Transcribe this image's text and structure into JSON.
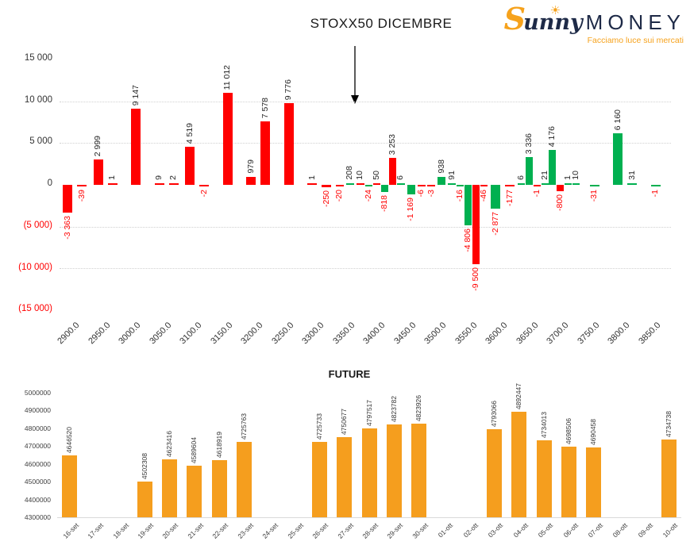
{
  "logo": {
    "brand_script": "S",
    "brand_script_rest": "unny",
    "brand_rest": "MONEY",
    "tagline": "Facciamo luce sui mercati",
    "orange": "#f6a21c",
    "navy": "#1e2a47"
  },
  "chart_data": [
    {
      "type": "bar",
      "title": "STOXX50 DICEMBRE",
      "ylim": [
        -15000,
        15000
      ],
      "ytick_step": 5000,
      "y_tick_labels": [
        "15 000",
        "10 000",
        "5 000",
        "0",
        "(5 000)",
        "(10 000)",
        "(15 000)"
      ],
      "grid": "dotted horizontal at ±5 000 and ±10 000",
      "colors": {
        "red_series": "#ff0000",
        "green_series": "#00b050",
        "negative_label": "#ff0000",
        "positive_label": "#262626"
      },
      "annotation": "downward arrow from title pointing between 3350 and 3400",
      "categories": [
        "2900.0",
        "2950.0",
        "3000.0",
        "3050.0",
        "3100.0",
        "3150.0",
        "3200.0",
        "3250.0",
        "3300.0",
        "3350.0",
        "3400.0",
        "3450.0",
        "3500.0",
        "3550.0",
        "3600.0",
        "3650.0",
        "3700.0",
        "3750.0",
        "3800.0",
        "3850.0"
      ],
      "bars_by_category": [
        [
          {
            "v": -3363,
            "t": "-3 363",
            "c": "R"
          },
          {
            "v": -39,
            "t": "-39",
            "c": "R"
          }
        ],
        [
          {
            "v": 2999,
            "t": "2 999",
            "c": "R"
          },
          {
            "v": 1,
            "t": "1",
            "c": "R"
          }
        ],
        [
          {
            "v": 9147,
            "t": "9 147",
            "c": "R"
          }
        ],
        [
          {
            "v": 9,
            "t": "9",
            "c": "R"
          },
          {
            "v": 2,
            "t": "2",
            "c": "R"
          }
        ],
        [
          {
            "v": 4519,
            "t": "4 519",
            "c": "R"
          },
          {
            "v": -2,
            "t": "-2",
            "c": "R"
          }
        ],
        [
          {
            "v": 11012,
            "t": "11 012",
            "c": "R"
          }
        ],
        [
          {
            "v": 979,
            "t": "979",
            "c": "R"
          },
          {
            "v": 7578,
            "t": "7 578",
            "c": "R"
          }
        ],
        [
          {
            "v": 9776,
            "t": "9 776",
            "c": "R"
          }
        ],
        [
          {
            "v": 1,
            "t": "1",
            "c": "R"
          },
          {
            "v": -250,
            "t": "-250",
            "c": "R"
          }
        ],
        [
          {
            "v": -20,
            "t": "-20",
            "c": "R"
          },
          {
            "v": 208,
            "t": "208",
            "c": "G"
          },
          {
            "v": 10,
            "t": "10",
            "c": "R"
          }
        ],
        [
          {
            "v": -24,
            "t": "-24",
            "c": "G"
          },
          {
            "v": 50,
            "t": "50",
            "c": "R"
          },
          {
            "v": -818,
            "t": "-818",
            "c": "G"
          },
          {
            "v": 3253,
            "t": "3 253",
            "c": "R"
          }
        ],
        [
          {
            "v": 6,
            "t": "6",
            "c": "G"
          },
          {
            "v": -1169,
            "t": "-1 169",
            "c": "G"
          },
          {
            "v": -6,
            "t": "-6",
            "c": "R"
          }
        ],
        [
          {
            "v": -3,
            "t": "-3",
            "c": "R"
          },
          {
            "v": 938,
            "t": "938",
            "c": "G"
          },
          {
            "v": 91,
            "t": "91",
            "c": "G"
          }
        ],
        [
          {
            "v": -16,
            "t": "-16",
            "c": "G"
          },
          {
            "v": -4806,
            "t": "-4 806",
            "c": "G"
          },
          {
            "v": -9500,
            "t": "-9 500",
            "c": "R"
          },
          {
            "v": -46,
            "t": "-46",
            "c": "R"
          }
        ],
        [
          {
            "v": -2877,
            "t": "-2 877",
            "c": "G"
          },
          {
            "v": -177,
            "t": "-177",
            "c": "R"
          }
        ],
        [
          {
            "v": 6,
            "t": "6",
            "c": "G"
          },
          {
            "v": 3336,
            "t": "3 336",
            "c": "G"
          },
          {
            "v": -1,
            "t": "-1",
            "c": "R"
          },
          {
            "v": 21,
            "t": "21",
            "c": "G"
          }
        ],
        [
          {
            "v": 4176,
            "t": "4 176",
            "c": "G"
          },
          {
            "v": -800,
            "t": "-800",
            "c": "R"
          },
          {
            "v": 1,
            "t": "1",
            "c": "G"
          },
          {
            "v": 10,
            "t": "10",
            "c": "G"
          }
        ],
        [
          {
            "v": -31,
            "t": "-31",
            "c": "G"
          }
        ],
        [
          {
            "v": 6160,
            "t": "6 160",
            "c": "G"
          },
          {
            "v": 31,
            "t": "31",
            "c": "G"
          }
        ],
        [
          {
            "v": -1,
            "t": "-1",
            "c": "G"
          }
        ]
      ]
    },
    {
      "type": "bar",
      "title": "FUTURE",
      "color": "#f59e1e",
      "ylim": [
        4300000,
        5000000
      ],
      "ytick_step": 100000,
      "y_tick_labels": [
        "5000000",
        "4900000",
        "4800000",
        "4700000",
        "4600000",
        "4500000",
        "4400000",
        "4300000"
      ],
      "grid": "none",
      "categories": [
        "16-set",
        "17-set",
        "18-set",
        "19-set",
        "20-set",
        "21-set",
        "22-set",
        "23-set",
        "24-set",
        "25-set",
        "26-set",
        "27-set",
        "28-set",
        "29-set",
        "30-set",
        "01-ott",
        "02-ott",
        "03-ott",
        "04-ott",
        "05-ott",
        "06-ott",
        "07-ott",
        "08-ott",
        "09-ott",
        "10-ott"
      ],
      "values": [
        4646520,
        null,
        null,
        4502308,
        4623416,
        4589604,
        4618919,
        4725763,
        null,
        null,
        4725733,
        4750677,
        4797517,
        4823782,
        4823926,
        null,
        null,
        4793066,
        4892447,
        4734013,
        4698506,
        4690458,
        null,
        null,
        4734738
      ]
    }
  ]
}
